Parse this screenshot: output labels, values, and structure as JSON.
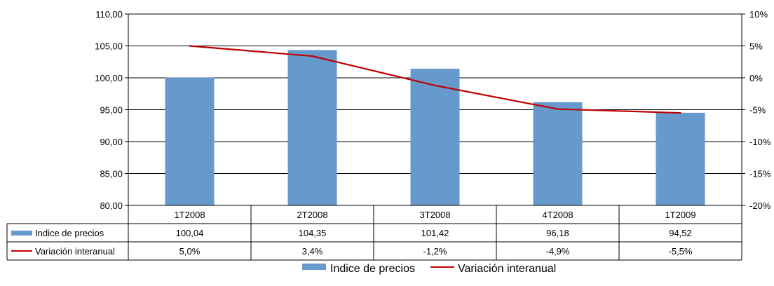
{
  "chart_data": {
    "type": "bar",
    "categories": [
      "1T2008",
      "2T2008",
      "3T2008",
      "4T2008",
      "1T2009"
    ],
    "series": [
      {
        "name": "Indice de precios",
        "type": "bar",
        "axis": "left",
        "color": "#6699cc",
        "values": [
          100.04,
          104.35,
          101.42,
          96.18,
          94.52
        ],
        "table_labels": [
          "100,04",
          "104,35",
          "101,42",
          "96,18",
          "94,52"
        ]
      },
      {
        "name": "Variación interanual",
        "type": "line",
        "axis": "right",
        "color": "#c00000",
        "values": [
          5.0,
          3.4,
          -1.2,
          -4.9,
          -5.5
        ],
        "table_labels": [
          "5,0%",
          "3,4%",
          "-1,2%",
          "-4,9%",
          "-5,5%"
        ]
      }
    ],
    "ylim": [
      80,
      110
    ],
    "y_ticks": [
      80,
      85,
      90,
      95,
      100,
      105,
      110
    ],
    "y_tick_labels": [
      "80,00",
      "85,00",
      "90,00",
      "95,00",
      "100,00",
      "105,00",
      "110,00"
    ],
    "y2lim": [
      -20,
      10
    ],
    "y2_ticks": [
      -20,
      -15,
      -10,
      -5,
      0,
      5,
      10
    ],
    "y2_tick_labels": [
      "-20%",
      "-15%",
      "-10%",
      "-5%",
      "0%",
      "5%",
      "10%"
    ],
    "grid": true,
    "legend_position": "bottom",
    "data_table": true
  }
}
